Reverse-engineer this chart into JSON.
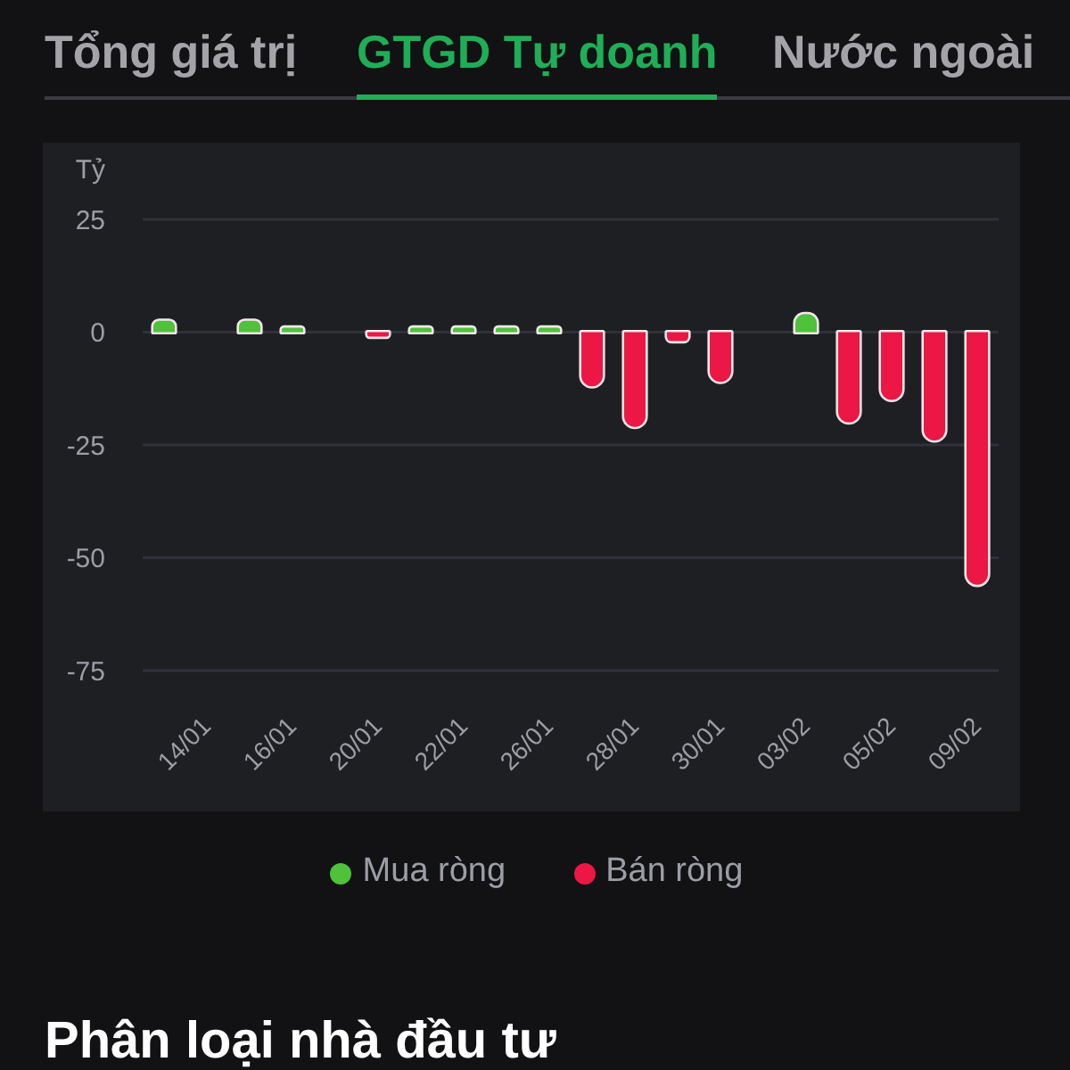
{
  "chart_data": {
    "type": "bar",
    "title": "GTGD Tự doanh",
    "ylabel": "Tỷ",
    "annotations": [
      "Tổng giá trị",
      "Nước ngoài",
      "Phân loại nhà đầu tư"
    ],
    "categories": [
      null,
      "14/01",
      null,
      "16/01",
      null,
      "20/01",
      null,
      "22/01",
      null,
      "26/01",
      null,
      "28/01",
      null,
      "30/01",
      null,
      "03/02",
      null,
      "05/02",
      null,
      "09/02"
    ],
    "series": [
      {
        "name": "Mua ròng",
        "color": "#4fc13b",
        "values": [
          2.5,
          null,
          2.5,
          1,
          null,
          null,
          1,
          1,
          1,
          1,
          null,
          null,
          null,
          null,
          null,
          4,
          null,
          null,
          null,
          null
        ]
      },
      {
        "name": "Bán ròng",
        "color": "#ec1744",
        "values": [
          null,
          null,
          null,
          null,
          null,
          -1,
          null,
          null,
          null,
          null,
          -12,
          -21,
          -2,
          -11,
          null,
          null,
          -20,
          -15,
          -24,
          -56
        ]
      }
    ],
    "stacked": true,
    "ylim": [
      -75,
      25
    ],
    "yticks": [
      25,
      0,
      -25,
      -50,
      -75
    ],
    "grid": "y",
    "legend": "bottom"
  }
}
